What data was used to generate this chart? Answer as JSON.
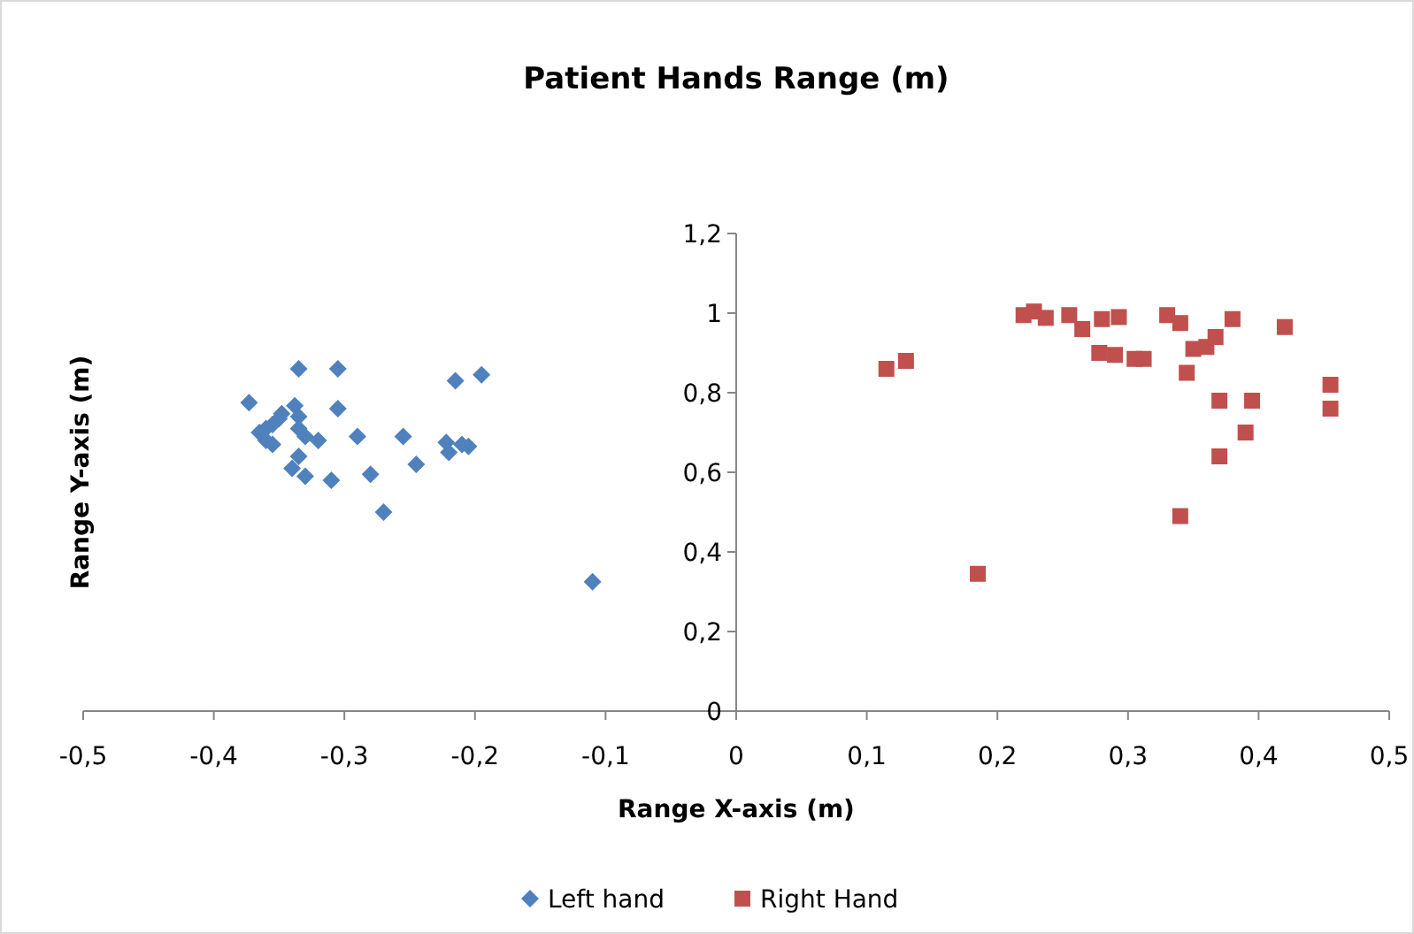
{
  "chart_data": {
    "type": "scatter",
    "title": "Patient Hands Range (m)",
    "xlabel": "Range X-axis (m)",
    "ylabel": "Range Y-axis (m)",
    "xlim": [
      -0.5,
      0.5
    ],
    "ylim": [
      0,
      1.2
    ],
    "xticks": [
      {
        "value": -0.5,
        "label": "-0,5"
      },
      {
        "value": -0.4,
        "label": "-0,4"
      },
      {
        "value": -0.3,
        "label": "-0,3"
      },
      {
        "value": -0.2,
        "label": "-0,2"
      },
      {
        "value": -0.1,
        "label": "-0,1"
      },
      0,
      {
        "value": 0.1,
        "label": "0,1"
      },
      {
        "value": 0.2,
        "label": "0,2"
      },
      {
        "value": 0.3,
        "label": "0,3"
      },
      {
        "value": 0.4,
        "label": "0,4"
      },
      {
        "value": 0.5,
        "label": "0,5"
      }
    ],
    "yticks": [
      0,
      {
        "value": 0.2,
        "label": "0,2"
      },
      {
        "value": 0.4,
        "label": "0,4"
      },
      {
        "value": 0.6,
        "label": "0,6"
      },
      {
        "value": 0.8,
        "label": "0,8"
      },
      1,
      {
        "value": 1.2,
        "label": "1,2"
      }
    ],
    "grid": false,
    "legend": "bottom",
    "series": [
      {
        "name": "Left hand",
        "color": "#4f81bd",
        "marker": "diamond",
        "x": [
          -0.373,
          -0.335,
          -0.305,
          -0.215,
          -0.195,
          -0.305,
          -0.338,
          -0.348,
          -0.35,
          -0.355,
          -0.36,
          -0.365,
          -0.36,
          -0.355,
          -0.335,
          -0.335,
          -0.33,
          -0.32,
          -0.29,
          -0.255,
          -0.222,
          -0.21,
          -0.205,
          -0.22,
          -0.245,
          -0.335,
          -0.34,
          -0.33,
          -0.31,
          -0.28,
          -0.27,
          -0.11
        ],
        "values": [
          0.775,
          0.86,
          0.86,
          0.83,
          0.845,
          0.76,
          0.767,
          0.747,
          0.735,
          0.72,
          0.71,
          0.7,
          0.68,
          0.67,
          0.74,
          0.71,
          0.69,
          0.68,
          0.69,
          0.69,
          0.675,
          0.67,
          0.665,
          0.65,
          0.62,
          0.64,
          0.61,
          0.59,
          0.58,
          0.595,
          0.5,
          0.325
        ]
      },
      {
        "name": "Right Hand",
        "color": "#c0504d",
        "marker": "square",
        "x": [
          0.115,
          0.13,
          0.22,
          0.228,
          0.237,
          0.255,
          0.265,
          0.28,
          0.293,
          0.278,
          0.29,
          0.305,
          0.312,
          0.33,
          0.34,
          0.38,
          0.42,
          0.345,
          0.35,
          0.36,
          0.367,
          0.37,
          0.395,
          0.455,
          0.455,
          0.39,
          0.37,
          0.34,
          0.185
        ],
        "values": [
          0.86,
          0.88,
          0.995,
          1.004,
          0.988,
          0.995,
          0.96,
          0.985,
          0.99,
          0.9,
          0.895,
          0.885,
          0.885,
          0.995,
          0.975,
          0.985,
          0.965,
          0.85,
          0.91,
          0.915,
          0.94,
          0.78,
          0.78,
          0.82,
          0.76,
          0.7,
          0.64,
          0.49,
          0.345
        ]
      }
    ]
  }
}
